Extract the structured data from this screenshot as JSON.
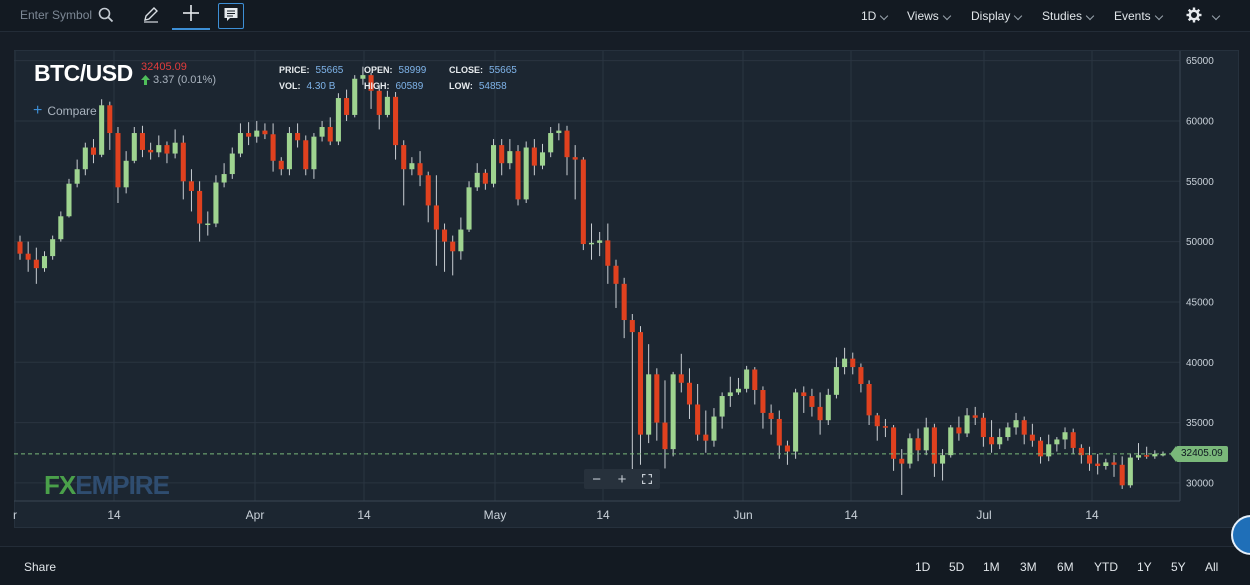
{
  "toolbar": {
    "symbol_placeholder": "Enter Symbol",
    "menus": {
      "interval": "1D",
      "views": "Views",
      "display": "Display",
      "studies": "Studies",
      "events": "Events"
    }
  },
  "quote": {
    "symbol": "BTC/USD",
    "price": "32405.09",
    "change": "3.37 (0.01%)",
    "stats": {
      "price_label": "PRICE:",
      "price_value": "55665",
      "open_label": "OPEN:",
      "open_value": "58999",
      "close_label": "CLOSE:",
      "close_value": "55665",
      "vol_label": "VOL:",
      "vol_value": "4.30 B",
      "high_label": "HIGH:",
      "high_value": "60589",
      "low_label": "LOW:",
      "low_value": "54858"
    }
  },
  "compare_label": "Compare",
  "watermark": {
    "fx": "FX",
    "empire": "EMPIRE"
  },
  "price_tag": "32405.09",
  "bottom": {
    "share": "Share",
    "ranges": [
      "1D",
      "5D",
      "1M",
      "3M",
      "6M",
      "YTD",
      "1Y",
      "5Y",
      "All"
    ]
  },
  "colors": {
    "up": "#9fd490",
    "down": "#e0411f",
    "background": "#1c2631",
    "grid": "#2a3541"
  },
  "chart_data": {
    "type": "candlestick",
    "ylim": [
      28500,
      65800
    ],
    "y_ticks": [
      30000,
      35000,
      40000,
      45000,
      50000,
      55000,
      60000,
      65000
    ],
    "x_tick_labels": [
      "r",
      "14",
      "Apr",
      "14",
      "May",
      "14",
      "Jun",
      "14",
      "Jul",
      "14"
    ],
    "last_price": 32405.09,
    "candles_ohlc": [
      [
        50000,
        49000,
        48500,
        50500
      ],
      [
        49000,
        48500,
        47500,
        50000
      ],
      [
        48500,
        47800,
        46500,
        49500
      ],
      [
        47800,
        48800,
        47500,
        49200
      ],
      [
        48800,
        50200,
        48500,
        50500
      ],
      [
        50200,
        52100,
        50000,
        52500
      ],
      [
        52100,
        54800,
        52000,
        55200
      ],
      [
        54800,
        56000,
        54500,
        56800
      ],
      [
        56000,
        57800,
        55500,
        58200
      ],
      [
        57800,
        57200,
        56500,
        58500
      ],
      [
        57200,
        61300,
        57000,
        61800
      ],
      [
        61300,
        59000,
        57600,
        61600
      ],
      [
        59000,
        54500,
        53200,
        59500
      ],
      [
        54500,
        56700,
        54000,
        57500
      ],
      [
        56700,
        59000,
        56500,
        59500
      ],
      [
        59000,
        57600,
        57000,
        59600
      ],
      [
        57600,
        57400,
        56800,
        58200
      ],
      [
        57400,
        58000,
        57000,
        58800
      ],
      [
        58000,
        57300,
        56500,
        58300
      ],
      [
        57300,
        58200,
        56900,
        59300
      ],
      [
        58200,
        55000,
        53500,
        58800
      ],
      [
        55000,
        54200,
        52500,
        56000
      ],
      [
        54200,
        51500,
        50000,
        55000
      ],
      [
        51500,
        51500,
        50500,
        52500
      ],
      [
        51500,
        54900,
        51200,
        55500
      ],
      [
        54900,
        55600,
        54500,
        56500
      ],
      [
        55600,
        57300,
        55200,
        57800
      ],
      [
        57300,
        59000,
        57000,
        59800
      ],
      [
        59000,
        58700,
        58000,
        59900
      ],
      [
        58700,
        59200,
        58200,
        60000
      ],
      [
        59200,
        58900,
        58500,
        59800
      ],
      [
        58900,
        56700,
        55800,
        59800
      ],
      [
        56700,
        56000,
        55500,
        57000
      ],
      [
        56000,
        59000,
        55500,
        59500
      ],
      [
        59000,
        58400,
        57800,
        59800
      ],
      [
        58400,
        56000,
        55500,
        58800
      ],
      [
        56000,
        58700,
        55200,
        59000
      ],
      [
        58700,
        59500,
        58300,
        60000
      ],
      [
        59500,
        58300,
        58000,
        60300
      ],
      [
        58300,
        61900,
        58000,
        62300
      ],
      [
        61900,
        60500,
        60000,
        62600
      ],
      [
        60500,
        63500,
        60300,
        63800
      ],
      [
        63500,
        63800,
        63000,
        64500
      ],
      [
        63800,
        62500,
        61000,
        64000
      ],
      [
        62500,
        60500,
        59300,
        63000
      ],
      [
        60500,
        62000,
        60300,
        62500
      ],
      [
        62000,
        58000,
        56800,
        62400
      ],
      [
        58000,
        56000,
        53000,
        58400
      ],
      [
        56000,
        56500,
        55500,
        57000
      ],
      [
        56500,
        55500,
        54600,
        57500
      ],
      [
        55500,
        53000,
        51600,
        55800
      ],
      [
        53000,
        51000,
        48000,
        55500
      ],
      [
        51000,
        50000,
        47500,
        51500
      ],
      [
        50000,
        49200,
        47200,
        50500
      ],
      [
        49200,
        51000,
        48500,
        52000
      ],
      [
        51000,
        54500,
        50800,
        55000
      ],
      [
        54500,
        55700,
        54200,
        56500
      ],
      [
        55700,
        54800,
        54300,
        56000
      ],
      [
        54800,
        58000,
        54500,
        58500
      ],
      [
        58000,
        56500,
        55500,
        58500
      ],
      [
        56500,
        57500,
        56000,
        58500
      ],
      [
        57500,
        53500,
        53000,
        58000
      ],
      [
        53500,
        57800,
        53200,
        58300
      ],
      [
        57800,
        56300,
        55500,
        58500
      ],
      [
        56300,
        57400,
        56000,
        58100
      ],
      [
        57400,
        59000,
        57000,
        59500
      ],
      [
        59000,
        59200,
        58400,
        59800
      ],
      [
        59200,
        57000,
        55500,
        59600
      ],
      [
        57000,
        56800,
        53500,
        58000
      ],
      [
        56800,
        49800,
        49300,
        57000
      ],
      [
        49800,
        49900,
        48500,
        51500
      ],
      [
        49900,
        50100,
        48800,
        50800
      ],
      [
        50100,
        48000,
        46500,
        51500
      ],
      [
        48000,
        46500,
        44500,
        48500
      ],
      [
        46500,
        43500,
        42000,
        47000
      ],
      [
        43500,
        42500,
        31000,
        44000
      ],
      [
        42500,
        34000,
        31500,
        43000
      ],
      [
        34000,
        39000,
        33300,
        41500
      ],
      [
        39000,
        35000,
        33500,
        39500
      ],
      [
        35000,
        32800,
        31200,
        38500
      ],
      [
        32800,
        39000,
        32200,
        39200
      ],
      [
        39000,
        38300,
        37500,
        40700
      ],
      [
        38300,
        36500,
        35300,
        39500
      ],
      [
        36500,
        34000,
        33500,
        38200
      ],
      [
        34000,
        33500,
        32500,
        36000
      ],
      [
        33500,
        35500,
        33000,
        36200
      ],
      [
        35500,
        37200,
        34500,
        37500
      ],
      [
        37200,
        37500,
        36300,
        38800
      ],
      [
        37500,
        37800,
        37300,
        38700
      ],
      [
        37800,
        39400,
        37500,
        39700
      ],
      [
        39400,
        37700,
        36500,
        39600
      ],
      [
        37700,
        35800,
        34500,
        38000
      ],
      [
        35800,
        35300,
        34000,
        36500
      ],
      [
        35300,
        33100,
        32000,
        36000
      ],
      [
        33100,
        32600,
        31500,
        33500
      ],
      [
        32600,
        37500,
        32000,
        37800
      ],
      [
        37500,
        37200,
        35800,
        38000
      ],
      [
        37200,
        36300,
        35500,
        37800
      ],
      [
        36300,
        35200,
        34000,
        37500
      ],
      [
        35200,
        37300,
        34800,
        37800
      ],
      [
        37300,
        39600,
        37000,
        40400
      ],
      [
        39600,
        40300,
        39000,
        41200
      ],
      [
        40300,
        39600,
        39000,
        40800
      ],
      [
        39600,
        38200,
        37500,
        39900
      ],
      [
        38200,
        35600,
        34800,
        38500
      ],
      [
        35600,
        34700,
        33500,
        35800
      ],
      [
        34700,
        34600,
        33800,
        35300
      ],
      [
        34600,
        32000,
        31000,
        34800
      ],
      [
        32000,
        31600,
        29000,
        32800
      ],
      [
        31600,
        33700,
        31200,
        34100
      ],
      [
        33700,
        32700,
        31800,
        34500
      ],
      [
        32700,
        34600,
        32300,
        35400
      ],
      [
        34600,
        31600,
        30500,
        34900
      ],
      [
        31600,
        32300,
        30200,
        32800
      ],
      [
        32300,
        34600,
        32100,
        34800
      ],
      [
        34600,
        34100,
        33500,
        35500
      ],
      [
        34100,
        35600,
        33800,
        36200
      ],
      [
        35600,
        35400,
        34800,
        36300
      ],
      [
        35400,
        33800,
        33000,
        35800
      ],
      [
        33800,
        33200,
        32500,
        35200
      ],
      [
        33200,
        33800,
        32800,
        34500
      ],
      [
        33800,
        34600,
        33500,
        35000
      ],
      [
        34600,
        35200,
        34000,
        35800
      ],
      [
        35200,
        34000,
        33200,
        35500
      ],
      [
        34000,
        33500,
        33000,
        34900
      ],
      [
        33500,
        32200,
        31600,
        33800
      ],
      [
        32200,
        33200,
        31800,
        34000
      ],
      [
        33200,
        33600,
        32600,
        33800
      ],
      [
        33600,
        34200,
        32800,
        34600
      ],
      [
        34200,
        32900,
        32400,
        34500
      ],
      [
        32900,
        32300,
        31600,
        33200
      ],
      [
        32300,
        31600,
        31000,
        33000
      ],
      [
        31600,
        31400,
        30700,
        32400
      ],
      [
        31400,
        31700,
        31100,
        32000
      ],
      [
        31700,
        31500,
        30500,
        32300
      ],
      [
        31500,
        29800,
        29500,
        32200
      ],
      [
        29800,
        32100,
        29600,
        32400
      ],
      [
        32100,
        32300,
        31900,
        33300
      ],
      [
        32300,
        32200,
        32000,
        33000
      ],
      [
        32200,
        32400,
        32000,
        32700
      ],
      [
        32400,
        32405,
        32200,
        32600
      ]
    ]
  }
}
